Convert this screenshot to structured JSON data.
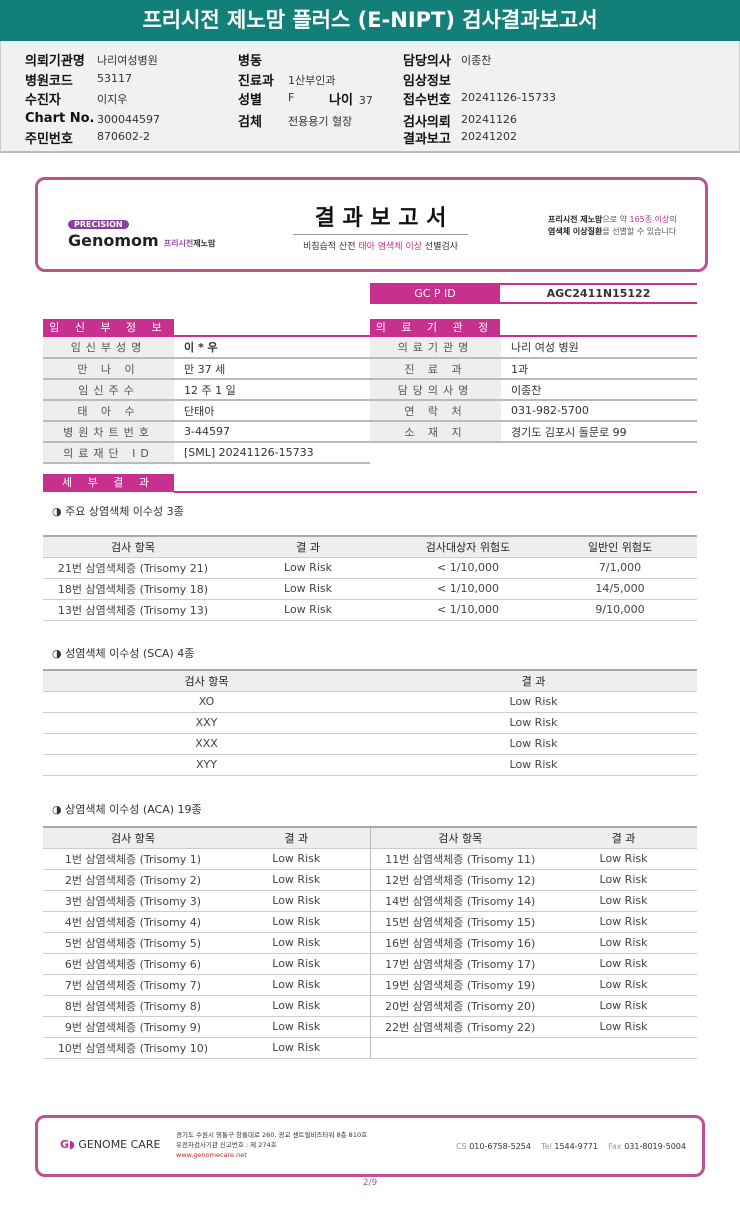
{
  "header": {
    "title": "프리시전 제노맘 플러스 (E-NIPT) 검사결과보고서"
  },
  "info": {
    "col1": [
      {
        "label": "의뢰기관명",
        "value": "나리여성병원"
      },
      {
        "label": "병원코드",
        "value": "53117"
      },
      {
        "label": "수진자",
        "value": "이지우"
      },
      {
        "label": "Chart No.",
        "value": "300044597"
      },
      {
        "label": "주민번호",
        "value": "870602-2"
      }
    ],
    "col2": [
      {
        "label": "병동",
        "value": ""
      },
      {
        "label": "진료과",
        "value": "1산부인과"
      },
      {
        "label": "성별",
        "value": "F"
      },
      {
        "label": "검체",
        "value": "전용용기 혈장"
      }
    ],
    "age": {
      "label": "나이",
      "value": "37"
    },
    "col3": [
      {
        "label": "담당의사",
        "value": "이종찬"
      },
      {
        "label": "임상정보",
        "value": ""
      },
      {
        "label": "접수번호",
        "value": "20241126-15733"
      },
      {
        "label": "검사의뢰",
        "value": "20241126"
      },
      {
        "label": "결과보고",
        "value": "20241202"
      }
    ]
  },
  "banner": {
    "logo_pill": "PRECISION",
    "logo_name": "Genomom",
    "logo_sub1": "프리시전",
    "logo_sub2": "제노맘",
    "title": "결 과 보 고 서",
    "subtitle_pre": "비침습적 산전 ",
    "subtitle_hl": "태아 염색체 이상",
    "subtitle_post": " 선별검사",
    "right1a": "프리시전 제노맘",
    "right1b": "으로 약 ",
    "right1c": "165종 이상",
    "right1d": "의",
    "right2a": "염색체 이상질환",
    "right2b": "을 선별할 수 있습니다"
  },
  "gcpid": {
    "label": "GC P ID",
    "value": "AGC2411N15122"
  },
  "sections": {
    "pregnant": "임 신 부 정 보",
    "hospital": "의 료 기 관 정 보",
    "detail": "세 부 결 과"
  },
  "pregnant_rows": [
    {
      "label": "임신부성명",
      "value": "이 * 우"
    },
    {
      "label": "만 나 이",
      "value": "만 37 세"
    },
    {
      "label": "임신주수",
      "value": "12 주 1 일"
    },
    {
      "label": "태 아 수",
      "value": "단태아"
    },
    {
      "label": "병원차트번호",
      "value": "3-44597"
    },
    {
      "label": "의료재단 ID",
      "value": "[SML] 20241126-15733"
    }
  ],
  "hospital_rows": [
    {
      "label": "의료기관명",
      "value": "나리 여성 병원"
    },
    {
      "label": "진 료 과",
      "value": "1과"
    },
    {
      "label": "담당의사명",
      "value": "이종찬"
    },
    {
      "label": "연 락 처",
      "value": "031-982-5700"
    },
    {
      "label": "소 재 지",
      "value": "경기도 김포시 돌문로 99"
    }
  ],
  "major": {
    "title": "◑ 주요 상염색체 이수성 3종",
    "headers": [
      "검사 항목",
      "결 과",
      "검사대상자 위험도",
      "일반인 위험도"
    ],
    "rows": [
      [
        "21번 삼염색체증 (Trisomy 21)",
        "Low Risk",
        "< 1/10,000",
        "7/1,000"
      ],
      [
        "18번 삼염색체증 (Trisomy 18)",
        "Low Risk",
        "< 1/10,000",
        "14/5,000"
      ],
      [
        "13번 삼염색체증 (Trisomy 13)",
        "Low Risk",
        "< 1/10,000",
        "9/10,000"
      ]
    ]
  },
  "sca": {
    "title": "◑ 성염색체 이수성 (SCA) 4종",
    "headers": [
      "검사 항목",
      "결 과"
    ],
    "rows": [
      [
        "XO",
        "Low Risk"
      ],
      [
        "XXY",
        "Low Risk"
      ],
      [
        "XXX",
        "Low Risk"
      ],
      [
        "XYY",
        "Low Risk"
      ]
    ]
  },
  "aca": {
    "title": "◑ 상염색체 이수성 (ACA) 19종",
    "headers": [
      "검사 항목",
      "결 과",
      "검사 항목",
      "결 과"
    ],
    "rows": [
      [
        "1번 삼염색체증 (Trisomy 1)",
        "Low Risk",
        "11번 삼염색체증 (Trisomy 11)",
        "Low Risk"
      ],
      [
        "2번 삼염색체증 (Trisomy 2)",
        "Low Risk",
        "12번 삼염색체증 (Trisomy 12)",
        "Low Risk"
      ],
      [
        "3번 삼염색체증 (Trisomy 3)",
        "Low Risk",
        "14번 삼염색체증 (Trisomy 14)",
        "Low Risk"
      ],
      [
        "4번 삼염색체증 (Trisomy 4)",
        "Low Risk",
        "15번 삼염색체증 (Trisomy 15)",
        "Low Risk"
      ],
      [
        "5번 삼염색체증 (Trisomy 5)",
        "Low Risk",
        "16번 삼염색체증 (Trisomy 16)",
        "Low Risk"
      ],
      [
        "6번 삼염색체증 (Trisomy 6)",
        "Low Risk",
        "17번 삼염색체증 (Trisomy 17)",
        "Low Risk"
      ],
      [
        "7번 삼염색체증 (Trisomy 7)",
        "Low Risk",
        "19번 삼염색체증 (Trisomy 19)",
        "Low Risk"
      ],
      [
        "8번 삼염색체증 (Trisomy 8)",
        "Low Risk",
        "20번 삼염색체증 (Trisomy 20)",
        "Low Risk"
      ],
      [
        "9번 삼염색체증 (Trisomy 9)",
        "Low Risk",
        "22번 삼염색체증 (Trisomy 22)",
        "Low Risk"
      ],
      [
        "10번 삼염색체증 (Trisomy 10)",
        "Low Risk",
        "",
        ""
      ]
    ]
  },
  "footer": {
    "logo": "GENOME CARE",
    "addr1": "경기도 수원시 영통구 창룡대로 260, 광교 센트럴비즈타워 8층 810호",
    "addr2": "유전자검사기관 신고번호 : 제 274호",
    "web": "www.genomecare.net",
    "cs_label": "CS",
    "cs": "010-6758-5254",
    "tel_label": "Tel",
    "tel": "1544-9771",
    "fax_label": "Fax",
    "fax": "031-8019-5004"
  },
  "page": "2/9",
  "colors": {
    "header": "#127f78",
    "accent": "#c8308f",
    "border": "#c0508f"
  }
}
